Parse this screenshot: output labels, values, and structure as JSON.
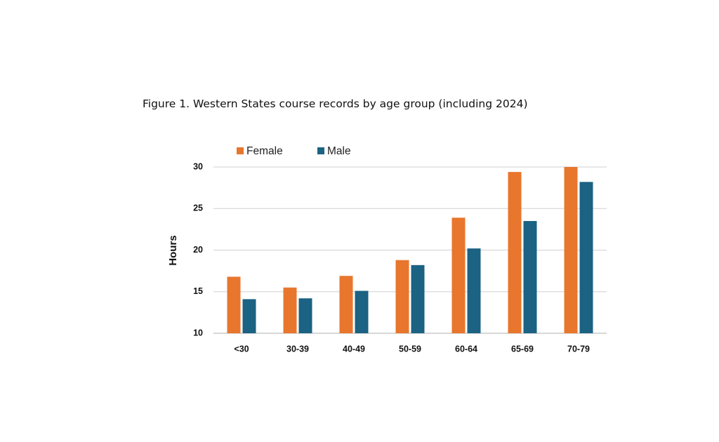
{
  "caption": "Figure 1. Western States course records by age group (including 2024)",
  "chart_data": {
    "type": "bar",
    "title": "",
    "xlabel": "",
    "ylabel": "Hours",
    "ylim": [
      10,
      30
    ],
    "yticks": [
      10,
      15,
      20,
      25,
      30
    ],
    "grid": true,
    "legend_position": "top-left",
    "categories": [
      "<30",
      "30-39",
      "40-49",
      "50-59",
      "60-64",
      "65-69",
      "70-79"
    ],
    "series": [
      {
        "name": "Female",
        "color": "#E8762D",
        "values": [
          16.8,
          15.5,
          16.9,
          18.8,
          23.9,
          29.4,
          30.0
        ]
      },
      {
        "name": "Male",
        "color": "#1B6283",
        "values": [
          14.1,
          14.2,
          15.1,
          18.2,
          20.2,
          23.5,
          28.2
        ]
      }
    ]
  }
}
